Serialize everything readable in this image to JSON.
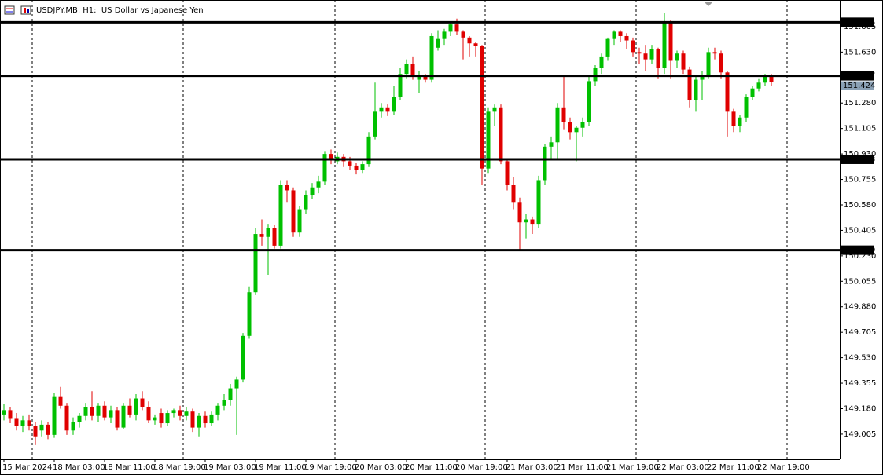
{
  "chart_data": {
    "type": "candlestick",
    "title": "USDJPY.MB, H1:  US Dollar vs Japanese Yen",
    "categories": [
      "15 Mar 2024",
      null,
      null,
      null,
      null,
      null,
      null,
      null,
      "18 Mar 03:00",
      null,
      null,
      null,
      null,
      null,
      null,
      null,
      "18 Mar 11:00",
      null,
      null,
      null,
      null,
      null,
      null,
      null,
      "18 Mar 19:00",
      null,
      null,
      null,
      null,
      null,
      null,
      null,
      "19 Mar 03:00",
      null,
      null,
      null,
      null,
      null,
      null,
      null,
      "19 Mar 11:00",
      null,
      null,
      null,
      null,
      null,
      null,
      null,
      "19 Mar 19:00",
      null,
      null,
      null,
      null,
      null,
      null,
      null,
      "20 Mar 03:00",
      null,
      null,
      null,
      null,
      null,
      null,
      null,
      "20 Mar 11:00",
      null,
      null,
      null,
      null,
      null,
      null,
      null,
      "20 Mar 19:00",
      null,
      null,
      null,
      null,
      null,
      null,
      null,
      "21 Mar 03:00",
      null,
      null,
      null,
      null,
      null,
      null,
      null,
      "21 Mar 11:00",
      null,
      null,
      null,
      null,
      null,
      null,
      null,
      "21 Mar 19:00",
      null,
      null,
      null,
      null,
      null,
      null,
      null,
      "22 Mar 03:00",
      null,
      null,
      null,
      null,
      null,
      null,
      null,
      "22 Mar 11:00",
      null,
      null,
      null,
      null,
      null,
      null,
      null,
      "22 Mar 19:00",
      null,
      null
    ],
    "open": [
      149.14,
      149.17,
      149.11,
      149.06,
      149.1,
      149.06,
      149.03,
      149.07,
      149.0,
      149.26,
      149.2,
      149.03,
      149.09,
      149.13,
      149.19,
      149.13,
      149.2,
      149.12,
      149.17,
      149.05,
      149.2,
      149.14,
      149.25,
      149.19,
      149.1,
      149.15,
      149.08,
      149.15,
      149.17,
      149.13,
      149.16,
      149.05,
      149.13,
      149.08,
      149.14,
      149.2,
      149.24,
      149.32,
      149.38,
      149.68,
      149.98,
      150.38,
      150.36,
      150.42,
      150.3,
      150.72,
      150.68,
      150.39,
      150.55,
      150.65,
      150.7,
      150.74,
      150.93,
      150.88,
      150.91,
      150.88,
      150.85,
      150.82,
      150.86,
      151.05,
      151.22,
      151.25,
      151.22,
      151.32,
      151.48,
      151.55,
      151.44,
      151.46,
      151.44,
      151.66,
      151.72,
      151.77,
      151.82,
      151.77,
      151.73,
      151.69,
      151.67,
      150.83,
      151.22,
      151.25,
      150.88,
      150.72,
      150.6,
      150.46,
      150.48,
      150.45,
      150.75,
      150.98,
      151.01,
      151.25,
      151.15,
      151.08,
      151.11,
      151.15,
      151.43,
      151.52,
      151.6,
      151.72,
      151.77,
      151.74,
      151.71,
      151.63,
      151.62,
      151.58,
      151.65,
      151.52,
      151.83,
      151.57,
      151.62,
      151.51,
      151.3,
      151.44,
      151.47,
      151.63,
      151.62,
      151.49,
      151.22,
      151.12,
      151.18,
      151.32,
      151.38,
      151.42,
      151.46
    ],
    "high": [
      149.21,
      149.19,
      149.15,
      149.13,
      149.14,
      149.09,
      149.1,
      149.09,
      149.29,
      149.33,
      149.22,
      149.12,
      149.15,
      149.22,
      149.3,
      149.22,
      149.23,
      149.2,
      149.19,
      149.22,
      149.25,
      149.28,
      149.3,
      149.23,
      149.14,
      149.18,
      149.17,
      149.18,
      149.2,
      149.19,
      149.18,
      149.15,
      149.16,
      149.16,
      149.22,
      149.28,
      149.35,
      149.4,
      149.7,
      150.02,
      150.42,
      150.48,
      150.45,
      150.44,
      150.75,
      150.75,
      150.7,
      150.57,
      150.68,
      150.73,
      150.78,
      150.95,
      150.96,
      150.94,
      150.93,
      150.91,
      150.87,
      150.88,
      151.08,
      151.42,
      151.28,
      151.27,
      151.4,
      151.52,
      151.58,
      151.6,
      151.5,
      151.48,
      151.76,
      151.78,
      151.79,
      151.84,
      151.86,
      151.78,
      151.74,
      151.7,
      151.68,
      151.25,
      151.27,
      151.27,
      150.9,
      150.77,
      150.63,
      150.52,
      150.5,
      150.78,
      151.0,
      151.05,
      151.28,
      151.46,
      151.18,
      151.12,
      151.18,
      151.46,
      151.54,
      151.62,
      151.73,
      151.78,
      151.78,
      151.76,
      151.73,
      151.66,
      151.68,
      151.68,
      151.66,
      151.9,
      151.85,
      151.64,
      151.64,
      151.53,
      151.47,
      151.5,
      151.66,
      151.66,
      151.64,
      151.5,
      151.24,
      151.2,
      151.34,
      151.4,
      151.45,
      151.48,
      151.48
    ],
    "low": [
      149.1,
      149.08,
      149.03,
      149.02,
      149.03,
      148.93,
      148.99,
      148.97,
      148.98,
      149.18,
      149.0,
      149.0,
      149.05,
      149.1,
      149.1,
      149.09,
      149.1,
      149.08,
      149.03,
      149.04,
      149.12,
      149.1,
      149.17,
      149.08,
      149.07,
      149.05,
      149.06,
      149.12,
      149.1,
      149.1,
      149.02,
      148.99,
      149.05,
      149.06,
      149.1,
      149.17,
      149.2,
      149.0,
      149.36,
      149.66,
      149.96,
      150.3,
      150.1,
      150.28,
      150.28,
      150.6,
      150.36,
      150.36,
      150.52,
      150.62,
      150.66,
      150.72,
      150.86,
      150.86,
      150.84,
      150.82,
      150.79,
      150.8,
      150.84,
      151.03,
      151.18,
      151.19,
      151.2,
      151.3,
      151.45,
      151.44,
      151.35,
      151.42,
      151.42,
      151.64,
      151.68,
      151.74,
      151.75,
      151.58,
      151.6,
      151.6,
      150.72,
      150.8,
      151.12,
      150.86,
      150.68,
      150.55,
      150.27,
      150.35,
      150.38,
      150.42,
      150.72,
      150.9,
      150.9,
      151.1,
      151.03,
      150.88,
      151.05,
      151.12,
      151.4,
      151.48,
      151.57,
      151.68,
      151.7,
      151.65,
      151.6,
      151.55,
      151.5,
      151.55,
      151.45,
      151.48,
      151.45,
      151.52,
      151.48,
      151.25,
      151.22,
      151.3,
      151.45,
      151.58,
      151.45,
      151.05,
      151.08,
      151.08,
      151.15,
      151.3,
      151.36,
      151.4,
      151.4
    ],
    "close": [
      149.17,
      149.11,
      149.06,
      149.1,
      149.06,
      148.99,
      149.07,
      149.0,
      149.26,
      149.2,
      149.03,
      149.09,
      149.13,
      149.19,
      149.13,
      149.2,
      149.12,
      149.17,
      149.05,
      149.2,
      149.14,
      149.25,
      149.19,
      149.1,
      149.12,
      149.08,
      149.15,
      149.17,
      149.13,
      149.16,
      149.05,
      149.13,
      149.08,
      149.14,
      149.2,
      149.24,
      149.32,
      149.38,
      149.68,
      149.98,
      150.38,
      150.36,
      150.42,
      150.3,
      150.72,
      150.68,
      150.39,
      150.55,
      150.65,
      150.7,
      150.74,
      150.93,
      150.9,
      150.91,
      150.88,
      150.85,
      150.82,
      150.86,
      151.05,
      151.22,
      151.25,
      151.22,
      151.32,
      151.48,
      151.55,
      151.47,
      151.46,
      151.44,
      151.74,
      151.72,
      151.77,
      151.82,
      151.77,
      151.73,
      151.69,
      151.67,
      150.83,
      151.22,
      151.25,
      150.88,
      150.72,
      150.6,
      150.46,
      150.48,
      150.45,
      150.75,
      150.98,
      151.01,
      151.25,
      151.15,
      151.08,
      151.11,
      151.15,
      151.43,
      151.52,
      151.6,
      151.72,
      151.77,
      151.74,
      151.71,
      151.63,
      151.62,
      151.58,
      151.65,
      151.52,
      151.83,
      151.57,
      151.62,
      151.51,
      151.3,
      151.44,
      151.47,
      151.63,
      151.62,
      151.49,
      151.22,
      151.12,
      151.18,
      151.32,
      151.38,
      151.42,
      151.46,
      151.424
    ],
    "up_color": "#00c000",
    "down_color": "#e00000",
    "ylim": [
      148.832,
      151.988
    ],
    "yticks": [
      151.805,
      {
        "value": 151.63,
        "label": "151.630"
      },
      {
        "value": 151.28,
        "label": "151.280"
      },
      151.105,
      {
        "value": 150.93,
        "label": "150.930"
      },
      150.755,
      {
        "value": 150.58,
        "label": "150.580"
      },
      150.405,
      {
        "value": 150.23,
        "label": "150.230"
      },
      150.055,
      {
        "value": 149.88,
        "label": "149.880"
      },
      149.705,
      {
        "value": 149.53,
        "label": "149.530"
      },
      149.355,
      {
        "value": 149.18,
        "label": "149.180"
      },
      149.005
    ],
    "levels": [
      151.835,
      151.467,
      150.893,
      150.269
    ],
    "level_color": "#000000",
    "price_line_color": "#8aa0b4"
  }
}
